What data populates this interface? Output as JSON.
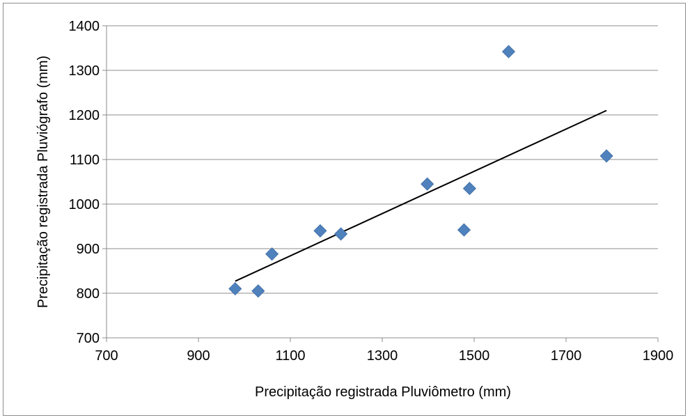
{
  "chart_data": {
    "type": "scatter",
    "title": "",
    "xlabel": "Precipitação registrada Pluviômetro (mm)",
    "ylabel": "Precipitação registrada Pluviógrafo  (mm)",
    "xlim": [
      700,
      1900
    ],
    "ylim": [
      700,
      1400
    ],
    "xticks": [
      700,
      900,
      1100,
      1300,
      1500,
      1700,
      1900
    ],
    "yticks": [
      700,
      800,
      900,
      1000,
      1100,
      1200,
      1300,
      1400
    ],
    "grid": "horizontal",
    "legend": "none",
    "series": [
      {
        "marker": "diamond",
        "color": "#4f81bd",
        "points": [
          {
            "x": 980,
            "y": 810
          },
          {
            "x": 1030,
            "y": 805
          },
          {
            "x": 1060,
            "y": 888
          },
          {
            "x": 1165,
            "y": 940
          },
          {
            "x": 1210,
            "y": 933
          },
          {
            "x": 1398,
            "y": 1045
          },
          {
            "x": 1478,
            "y": 942
          },
          {
            "x": 1490,
            "y": 1035
          },
          {
            "x": 1575,
            "y": 1342
          },
          {
            "x": 1788,
            "y": 1108
          }
        ]
      }
    ],
    "trendline": {
      "type": "linear",
      "color": "#000000",
      "x": [
        980,
        1788
      ],
      "y": [
        827,
        1210
      ]
    }
  }
}
